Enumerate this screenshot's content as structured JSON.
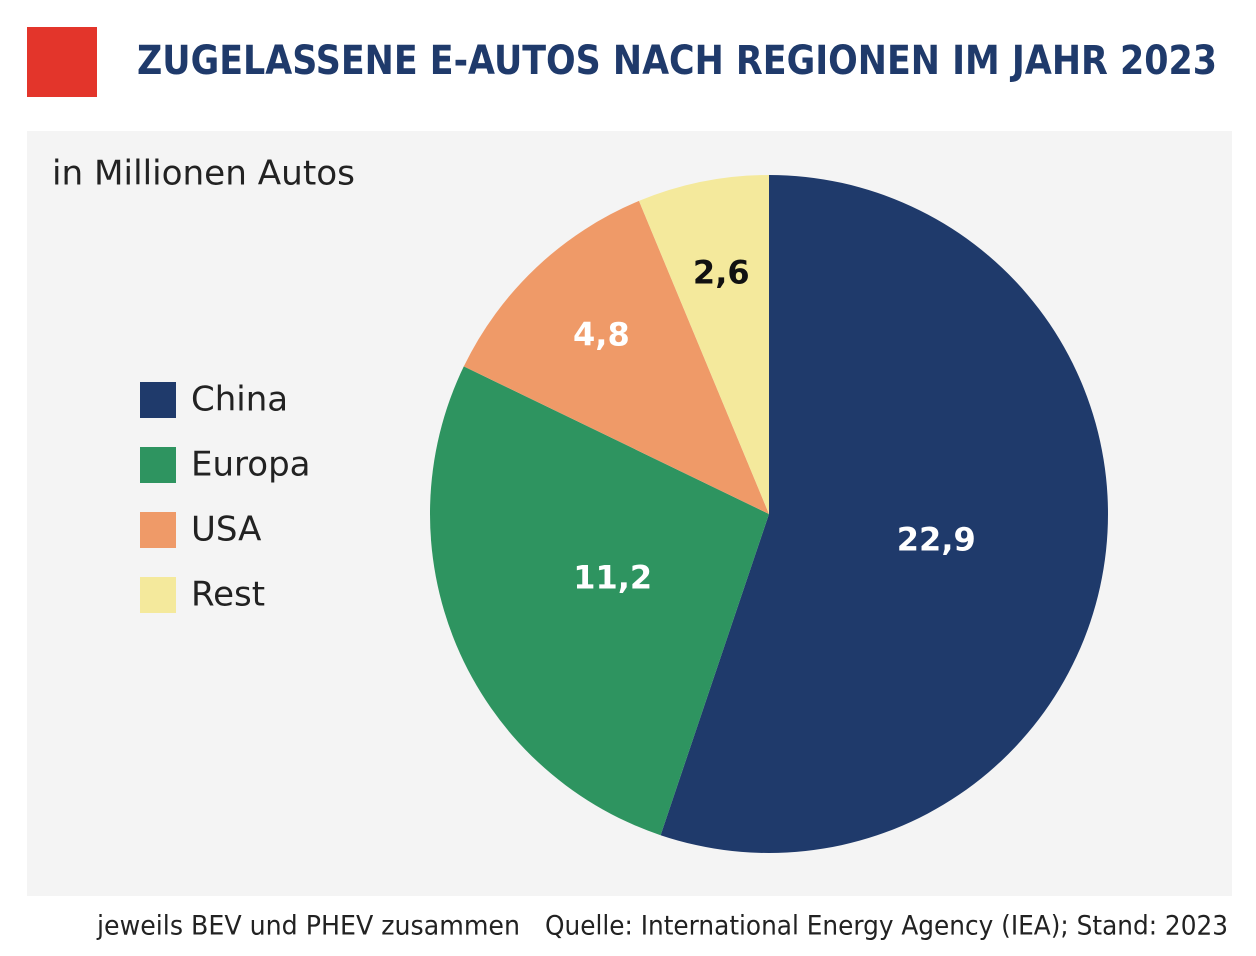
{
  "chart_data": {
    "type": "pie",
    "title": "ZUGELASSENE E-AUTOS NACH REGIONEN IM JAHR 2023",
    "subtitle": "in Millionen Autos",
    "categories": [
      "China",
      "Europa",
      "USA",
      "Rest"
    ],
    "values": [
      22.9,
      11.2,
      4.8,
      2.6
    ],
    "value_labels": [
      "22,9",
      "11,2",
      "4,8",
      "2,6"
    ],
    "colors": [
      "#1f3a6b",
      "#2e9460",
      "#ef9a68",
      "#f4e99c"
    ],
    "label_colors": [
      "#ffffff",
      "#ffffff",
      "#ffffff",
      "#111111"
    ],
    "legend": "left",
    "footnote": "jeweils BEV und PHEV zusammen",
    "source": "Quelle: International Energy Agency (IEA); Stand: 2023"
  }
}
